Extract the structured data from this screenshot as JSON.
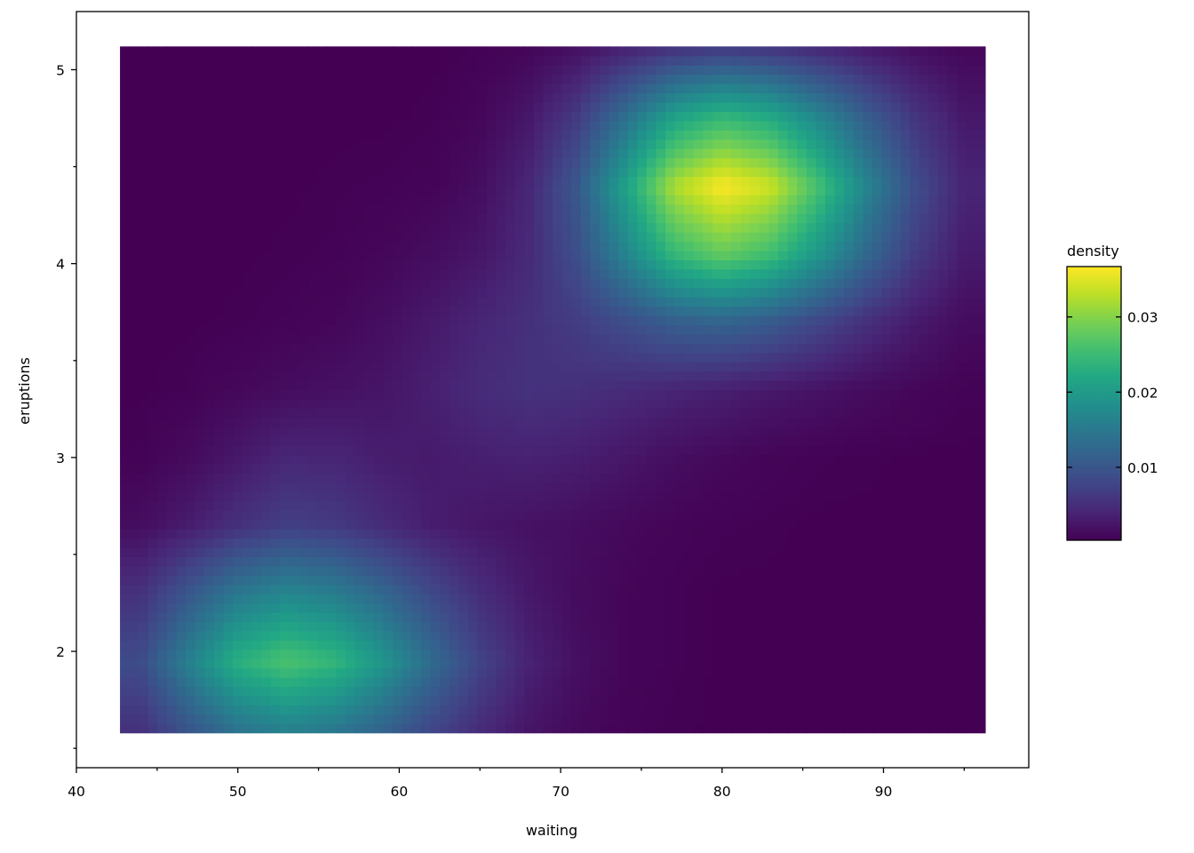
{
  "chart_data": {
    "type": "heatmap",
    "title": "",
    "xlabel": "waiting",
    "ylabel": "eruptions",
    "xlim": [
      40,
      99
    ],
    "ylim": [
      1.4,
      5.3
    ],
    "data_extent": {
      "x": [
        42.7,
        96.3
      ],
      "y": [
        1.58,
        5.12
      ]
    },
    "xticks": [
      "40",
      "50",
      "60",
      "70",
      "80",
      "90"
    ],
    "xtick_values": [
      40,
      50,
      60,
      70,
      80,
      90
    ],
    "xminor_values": [
      45,
      55,
      65,
      75,
      85,
      95
    ],
    "yticks": [
      "2",
      "3",
      "4",
      "5"
    ],
    "ytick_values": [
      2,
      3,
      4,
      5
    ],
    "yminor_values": [
      1.5,
      2.5,
      3.5,
      4.5
    ],
    "grid": false,
    "colormap": "viridis",
    "colorbar": {
      "title": "density",
      "range": [
        0.0003,
        0.0367
      ],
      "ticks": [
        "0.01",
        "0.02",
        "0.03"
      ],
      "tick_values": [
        0.01,
        0.02,
        0.03
      ],
      "placement": "right"
    },
    "x": [
      44,
      47,
      50,
      53,
      56,
      59,
      62,
      65,
      68,
      71,
      74,
      77,
      80,
      83,
      86,
      89,
      92,
      95
    ],
    "y": [
      1.6,
      1.95,
      2.3,
      2.65,
      3.0,
      3.35,
      3.7,
      4.05,
      4.4,
      4.75,
      5.1
    ],
    "z": [
      [
        0.0054,
        0.01,
        0.0143,
        0.0162,
        0.0149,
        0.0119,
        0.008,
        0.0048,
        0.0024,
        0.0012,
        0.0006,
        0.0004,
        0.0003,
        0.0003,
        0.0003,
        0.0003,
        0.0003,
        0.0003
      ],
      [
        0.0086,
        0.0162,
        0.0232,
        0.0263,
        0.0242,
        0.0193,
        0.013,
        0.0076,
        0.0038,
        0.0018,
        0.0008,
        0.0005,
        0.0003,
        0.0003,
        0.0003,
        0.0003,
        0.0003,
        0.0003
      ],
      [
        0.0054,
        0.0102,
        0.0148,
        0.0169,
        0.0156,
        0.0123,
        0.0083,
        0.005,
        0.0027,
        0.0014,
        0.0008,
        0.0005,
        0.0003,
        0.0003,
        0.0003,
        0.0003,
        0.0003,
        0.0003
      ],
      [
        0.0016,
        0.0032,
        0.0054,
        0.007,
        0.0065,
        0.0048,
        0.0032,
        0.0025,
        0.002,
        0.0016,
        0.0011,
        0.0007,
        0.0005,
        0.0004,
        0.0003,
        0.0003,
        0.0003,
        0.0003
      ],
      [
        0.0005,
        0.0013,
        0.0027,
        0.0042,
        0.0041,
        0.0032,
        0.0029,
        0.0034,
        0.0037,
        0.0033,
        0.0025,
        0.0016,
        0.0011,
        0.0007,
        0.0005,
        0.0004,
        0.0003,
        0.0003
      ],
      [
        0.0003,
        0.0005,
        0.001,
        0.0015,
        0.0019,
        0.0024,
        0.0035,
        0.0048,
        0.0055,
        0.0053,
        0.0047,
        0.004,
        0.0034,
        0.0027,
        0.0021,
        0.0014,
        0.0009,
        0.0005
      ],
      [
        0.0003,
        0.0003,
        0.0004,
        0.0006,
        0.0009,
        0.0016,
        0.0028,
        0.0041,
        0.0053,
        0.0067,
        0.0088,
        0.0111,
        0.0119,
        0.0106,
        0.008,
        0.0052,
        0.0029,
        0.0014
      ],
      [
        0.0003,
        0.0003,
        0.0003,
        0.0004,
        0.0005,
        0.0009,
        0.0015,
        0.0025,
        0.0046,
        0.0089,
        0.0165,
        0.0244,
        0.0279,
        0.0253,
        0.0192,
        0.0124,
        0.0066,
        0.003
      ],
      [
        0.0003,
        0.0003,
        0.0003,
        0.0003,
        0.0004,
        0.0005,
        0.0007,
        0.0016,
        0.0042,
        0.0103,
        0.021,
        0.0322,
        0.0367,
        0.034,
        0.0258,
        0.0166,
        0.0088,
        0.004
      ],
      [
        0.0003,
        0.0003,
        0.0003,
        0.0003,
        0.0003,
        0.0003,
        0.0004,
        0.0009,
        0.0026,
        0.0066,
        0.0138,
        0.0213,
        0.0247,
        0.0225,
        0.0171,
        0.0111,
        0.0059,
        0.0027
      ],
      [
        0.0003,
        0.0003,
        0.0003,
        0.0003,
        0.0003,
        0.0003,
        0.0003,
        0.0005,
        0.0009,
        0.002,
        0.004,
        0.006,
        0.007,
        0.0064,
        0.0049,
        0.0032,
        0.0018,
        0.001
      ]
    ]
  }
}
